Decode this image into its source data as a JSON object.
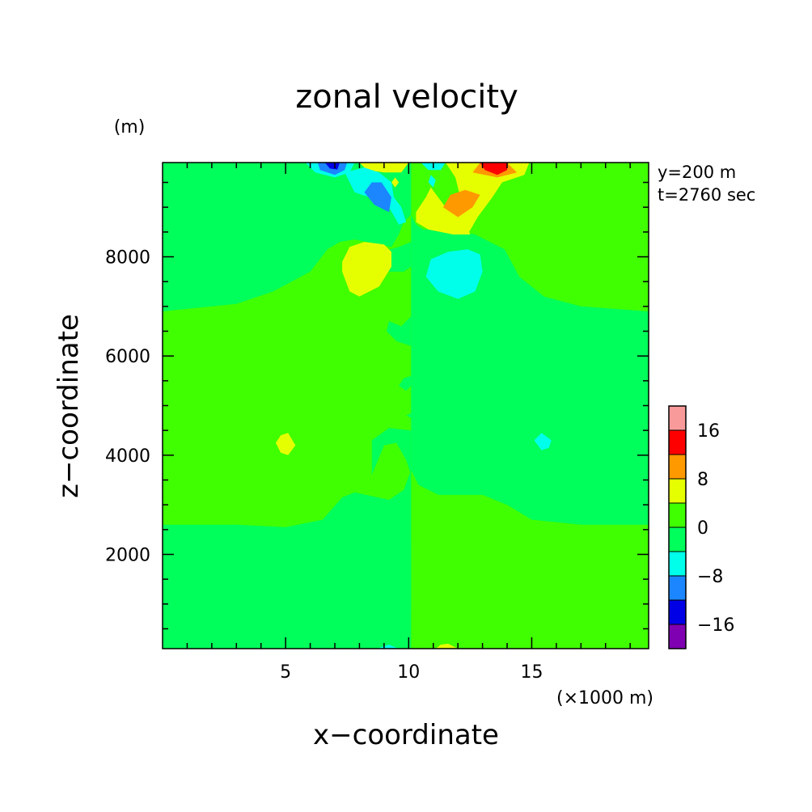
{
  "chart_data": {
    "type": "contour",
    "title": "zonal velocity",
    "xlabel": "x−coordinate",
    "ylabel": "z−coordinate",
    "x_unit": "(×1000 m)",
    "y_unit": "(m)",
    "info": [
      "y=200 m",
      "t=2760 sec"
    ],
    "xlim": [
      0,
      19.75
    ],
    "ylim": [
      100,
      9900
    ],
    "x_ticks": [
      5,
      10,
      15
    ],
    "x_tick_labels": [
      "5",
      "10",
      "15"
    ],
    "y_ticks": [
      2000,
      4000,
      6000,
      8000
    ],
    "y_tick_labels": [
      "2000",
      "4000",
      "6000",
      "8000"
    ],
    "grid": false,
    "colorbar": {
      "levels": [
        -20,
        -16,
        -12,
        -8,
        -4,
        0,
        4,
        8,
        12,
        16,
        20
      ],
      "colors": [
        "#7f00b2",
        "#0000e6",
        "#1b86ff",
        "#00ffea",
        "#00ff5a",
        "#40ff00",
        "#e6ff00",
        "#ff9900",
        "#ff0000",
        "#f99a9a"
      ],
      "label_values": [
        16,
        8,
        0,
        -8,
        -16
      ],
      "labels": [
        "16",
        "8",
        "0",
        "−8",
        "−16"
      ]
    },
    "regions": [
      {
        "level": 4,
        "shape": "poly",
        "points": [
          [
            0,
            9900
          ],
          [
            0,
            6900
          ],
          [
            1,
            6950
          ],
          [
            3,
            7050
          ],
          [
            4.5,
            7300
          ],
          [
            6,
            7700
          ],
          [
            6.7,
            8150
          ],
          [
            7.2,
            8300
          ],
          [
            7.8,
            8350
          ],
          [
            8.8,
            8250
          ],
          [
            9.3,
            8200
          ],
          [
            9.6,
            8450
          ],
          [
            9.8,
            8700
          ],
          [
            10.1,
            8850
          ],
          [
            10.1,
            9900
          ]
        ]
      },
      {
        "level": 4,
        "shape": "poly",
        "points": [
          [
            0,
            100
          ],
          [
            0,
            2600
          ],
          [
            3,
            2600
          ],
          [
            5,
            2550
          ],
          [
            6.5,
            2700
          ],
          [
            7.3,
            3150
          ],
          [
            7.8,
            3250
          ],
          [
            9.2,
            3100
          ],
          [
            9.8,
            3300
          ],
          [
            10.1,
            3700
          ],
          [
            10.1,
            100
          ]
        ]
      },
      {
        "level": 4,
        "shape": "poly",
        "points": [
          [
            8.5,
            3600
          ],
          [
            9.0,
            4200
          ],
          [
            9.5,
            4250
          ],
          [
            9.9,
            3900
          ],
          [
            10.1,
            3600
          ],
          [
            10.1,
            4500
          ],
          [
            9.2,
            4550
          ],
          [
            8.5,
            4300
          ]
        ]
      },
      {
        "level": 4,
        "shape": "poly",
        "points": [
          [
            8.7,
            7700
          ],
          [
            9.8,
            7700
          ],
          [
            10.1,
            7800
          ],
          [
            10.1,
            8300
          ],
          [
            9.6,
            8200
          ],
          [
            8.9,
            8100
          ]
        ]
      },
      {
        "level": 4,
        "shape": "poly",
        "points": [
          [
            10.1,
            3700
          ],
          [
            10.4,
            3400
          ],
          [
            11.2,
            3200
          ],
          [
            13,
            3200
          ],
          [
            14,
            3000
          ],
          [
            15,
            2700
          ],
          [
            17,
            2600
          ],
          [
            19.75,
            2600
          ],
          [
            19.75,
            6900
          ],
          [
            17,
            7000
          ],
          [
            15.5,
            7200
          ],
          [
            14.5,
            7600
          ],
          [
            13.9,
            8150
          ],
          [
            13.3,
            8300
          ],
          [
            12.7,
            8450
          ],
          [
            11.5,
            8550
          ],
          [
            10.6,
            8550
          ],
          [
            10.3,
            8650
          ],
          [
            10.1,
            8850
          ]
        ]
      },
      {
        "level": 4,
        "shape": "poly",
        "points": [
          [
            8.2,
            800
          ],
          [
            9.5,
            800
          ],
          [
            10.1,
            850
          ],
          [
            10.1,
            2300
          ],
          [
            9.4,
            2300
          ],
          [
            8.6,
            2150
          ],
          [
            8.5,
            1400
          ]
        ]
      },
      {
        "level": 4,
        "shape": "poly",
        "points": [
          [
            10.9,
            4200
          ],
          [
            11.2,
            3900
          ],
          [
            11.7,
            4000
          ],
          [
            11.9,
            4200
          ],
          [
            11.5,
            4600
          ],
          [
            11.0,
            4500
          ]
        ]
      },
      {
        "level": 4,
        "shape": "poly",
        "points": [
          [
            9.1,
            6500
          ],
          [
            9.5,
            6300
          ],
          [
            10.1,
            6200
          ],
          [
            10.1,
            6800
          ],
          [
            9.7,
            6600
          ],
          [
            9.2,
            6700
          ]
        ]
      },
      {
        "level": 4,
        "shape": "poly",
        "points": [
          [
            9.6,
            5400
          ],
          [
            9.9,
            5300
          ],
          [
            10.1,
            5400
          ],
          [
            10.1,
            5600
          ],
          [
            9.8,
            5550
          ]
        ]
      },
      {
        "level": 4,
        "shape": "poly",
        "points": [
          [
            9.9,
            4800
          ],
          [
            10.1,
            4750
          ],
          [
            10.4,
            4800
          ],
          [
            10.1,
            4850
          ]
        ]
      },
      {
        "level": 6,
        "shape": "poly",
        "points": [
          [
            7.3,
            7700
          ],
          [
            7.6,
            7300
          ],
          [
            8.0,
            7200
          ],
          [
            8.8,
            7400
          ],
          [
            9.3,
            7800
          ],
          [
            9.3,
            8100
          ],
          [
            9.0,
            8250
          ],
          [
            8.2,
            8300
          ],
          [
            7.6,
            8200
          ],
          [
            7.3,
            7900
          ]
        ]
      },
      {
        "level": 6,
        "shape": "poly",
        "points": [
          [
            4.6,
            4250
          ],
          [
            4.8,
            4050
          ],
          [
            5.1,
            4000
          ],
          [
            5.4,
            4200
          ],
          [
            5.1,
            4450
          ],
          [
            4.8,
            4400
          ]
        ]
      },
      {
        "level": 6,
        "shape": "poly",
        "points": [
          [
            10.9,
            9400
          ],
          [
            11.5,
            9000
          ],
          [
            12.3,
            8700
          ],
          [
            12.5,
            8450
          ],
          [
            11.8,
            8450
          ],
          [
            10.8,
            8550
          ],
          [
            10.3,
            8700
          ],
          [
            10.3,
            8900
          ],
          [
            10.7,
            9200
          ]
        ]
      },
      {
        "level": 6,
        "shape": "poly",
        "points": [
          [
            12.4,
            8450
          ],
          [
            12.8,
            8800
          ],
          [
            13.4,
            9200
          ],
          [
            13.8,
            9500
          ],
          [
            14.7,
            9650
          ],
          [
            14.9,
            9900
          ],
          [
            11.5,
            9900
          ],
          [
            11.9,
            9600
          ],
          [
            12.1,
            9200
          ],
          [
            11.8,
            8900
          ],
          [
            12.2,
            8600
          ]
        ]
      },
      {
        "level": 6,
        "shape": "poly",
        "points": [
          [
            8.0,
            9900
          ],
          [
            10.0,
            9900
          ],
          [
            9.7,
            9700
          ],
          [
            9.0,
            9700
          ],
          [
            8.3,
            9750
          ]
        ]
      },
      {
        "level": 6,
        "shape": "poly",
        "points": [
          [
            9.3,
            9500
          ],
          [
            9.45,
            9400
          ],
          [
            9.6,
            9500
          ],
          [
            9.45,
            9600
          ]
        ]
      },
      {
        "level": 6,
        "shape": "poly",
        "points": [
          [
            11.1,
            100
          ],
          [
            12.0,
            100
          ],
          [
            11.6,
            200
          ],
          [
            11.3,
            180
          ]
        ]
      },
      {
        "level": 7,
        "shape": "poly",
        "points": [
          [
            11.4,
            9000
          ],
          [
            12.0,
            8800
          ],
          [
            12.6,
            9000
          ],
          [
            12.9,
            9250
          ],
          [
            12.3,
            9350
          ],
          [
            11.7,
            9250
          ]
        ]
      },
      {
        "level": 7,
        "shape": "poly",
        "points": [
          [
            12.6,
            9700
          ],
          [
            13.6,
            9600
          ],
          [
            14.4,
            9700
          ],
          [
            14.0,
            9900
          ],
          [
            12.9,
            9900
          ]
        ]
      },
      {
        "level": 8,
        "shape": "poly",
        "points": [
          [
            12.9,
            9900
          ],
          [
            13.1,
            9750
          ],
          [
            13.6,
            9650
          ],
          [
            14.0,
            9750
          ],
          [
            14.0,
            9900
          ]
        ]
      },
      {
        "level": 3,
        "shape": "poly",
        "points": [
          [
            5.8,
            9900
          ],
          [
            6.2,
            9700
          ],
          [
            7.0,
            9600
          ],
          [
            7.6,
            9700
          ],
          [
            7.8,
            9900
          ]
        ]
      },
      {
        "level": 3,
        "shape": "poly",
        "points": [
          [
            7.4,
            9700
          ],
          [
            7.8,
            9300
          ],
          [
            8.4,
            9200
          ],
          [
            9.2,
            9000
          ],
          [
            9.6,
            8650
          ],
          [
            9.9,
            8700
          ],
          [
            9.7,
            9000
          ],
          [
            9.4,
            9200
          ],
          [
            9.3,
            9500
          ],
          [
            8.8,
            9700
          ],
          [
            8.2,
            9800
          ]
        ]
      },
      {
        "level": 3,
        "shape": "poly",
        "points": [
          [
            10.7,
            7600
          ],
          [
            11.2,
            7300
          ],
          [
            12.0,
            7150
          ],
          [
            12.7,
            7300
          ],
          [
            13.0,
            7700
          ],
          [
            12.9,
            8050
          ],
          [
            12.4,
            8150
          ],
          [
            11.6,
            8100
          ],
          [
            10.9,
            7950
          ]
        ]
      },
      {
        "level": 3,
        "shape": "poly",
        "points": [
          [
            10.5,
            9900
          ],
          [
            11.5,
            9900
          ],
          [
            11.3,
            9750
          ],
          [
            10.8,
            9750
          ]
        ]
      },
      {
        "level": 3,
        "shape": "poly",
        "points": [
          [
            15.1,
            4300
          ],
          [
            15.4,
            4100
          ],
          [
            15.7,
            4150
          ],
          [
            15.8,
            4300
          ],
          [
            15.4,
            4450
          ]
        ]
      },
      {
        "level": 3,
        "shape": "poly",
        "points": [
          [
            10.8,
            9500
          ],
          [
            11.0,
            9400
          ],
          [
            11.1,
            9550
          ],
          [
            10.9,
            9650
          ]
        ]
      },
      {
        "level": 3,
        "shape": "poly",
        "points": [
          [
            8.7,
            100
          ],
          [
            9.6,
            100
          ],
          [
            9.2,
            180
          ]
        ]
      },
      {
        "level": 2,
        "shape": "poly",
        "points": [
          [
            8.2,
            9300
          ],
          [
            8.6,
            9050
          ],
          [
            9.2,
            8900
          ],
          [
            9.3,
            9200
          ],
          [
            8.9,
            9500
          ],
          [
            8.5,
            9500
          ]
        ]
      },
      {
        "level": 2,
        "shape": "poly",
        "points": [
          [
            6.3,
            9900
          ],
          [
            6.4,
            9750
          ],
          [
            7.0,
            9650
          ],
          [
            7.4,
            9750
          ],
          [
            7.5,
            9900
          ]
        ]
      },
      {
        "level": 1,
        "shape": "poly",
        "points": [
          [
            6.6,
            9900
          ],
          [
            6.8,
            9780
          ],
          [
            7.1,
            9760
          ],
          [
            7.2,
            9900
          ]
        ]
      }
    ]
  }
}
